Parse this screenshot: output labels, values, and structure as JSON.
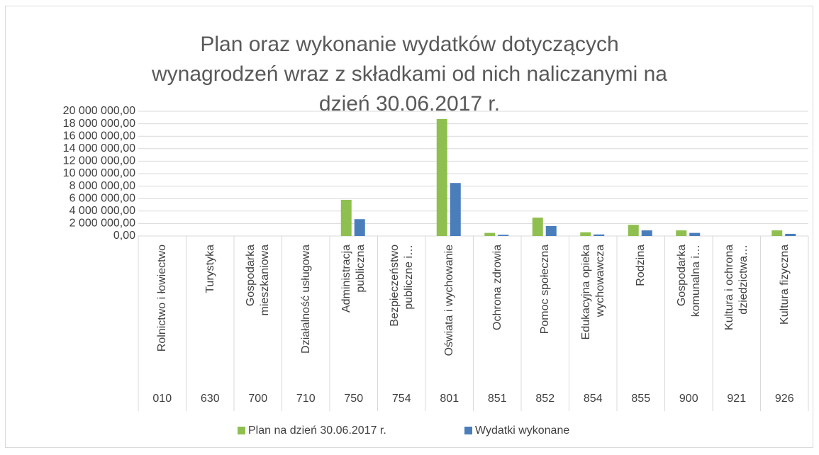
{
  "chart_data": {
    "type": "bar",
    "title": "Plan oraz wykonanie wydatków dotyczących wynagrodzeń wraz z składkami od nich naliczanymi na dzień 30.06.2017 r.",
    "categories": [
      "Rolnictwo i łowiectwo",
      "Turystyka",
      "Gospodarka mieszkaniowa",
      "Działalność usługowa",
      "Administracja publiczna",
      "Bezpieczeństwo publiczne i…",
      "Oświata i wychowanie",
      "Ochrona zdrowia",
      "Pomoc społeczna",
      "Edukacyjna opieka wychowawcza",
      "Rodzina",
      "Gospodarka komunalna i…",
      "Kultura i ochrona dziedzictwa…",
      "Kultura fizyczna"
    ],
    "codes": [
      "010",
      "630",
      "700",
      "710",
      "750",
      "754",
      "801",
      "851",
      "852",
      "854",
      "855",
      "900",
      "921",
      "926"
    ],
    "series": [
      {
        "name": "Plan na dzień 30.06.2017 r.",
        "color": "#8fc04f",
        "values": [
          0,
          0,
          0,
          0,
          5800000,
          0,
          18750000,
          500000,
          2950000,
          600000,
          1800000,
          900000,
          0,
          900000
        ]
      },
      {
        "name": "Wydatki wykonane",
        "color": "#4a7ebb",
        "values": [
          0,
          0,
          0,
          0,
          2700000,
          0,
          8500000,
          200000,
          1600000,
          250000,
          900000,
          500000,
          0,
          350000
        ]
      }
    ],
    "ylim": [
      0,
      20000000
    ],
    "yticks": [
      {
        "value": 0,
        "label": "0,00"
      },
      {
        "value": 2000000,
        "label": "2 000 000,00"
      },
      {
        "value": 4000000,
        "label": "4 000 000,00"
      },
      {
        "value": 6000000,
        "label": "6 000 000,00"
      },
      {
        "value": 8000000,
        "label": "8 000 000,00"
      },
      {
        "value": 10000000,
        "label": "10 000 000,00"
      },
      {
        "value": 12000000,
        "label": "12 000 000,00"
      },
      {
        "value": 14000000,
        "label": "14 000 000,00"
      },
      {
        "value": 16000000,
        "label": "16 000 000,00"
      },
      {
        "value": 18000000,
        "label": "18 000 000,00"
      },
      {
        "value": 20000000,
        "label": "20 000 000,00"
      }
    ],
    "grid": true,
    "legend": "bottom"
  }
}
